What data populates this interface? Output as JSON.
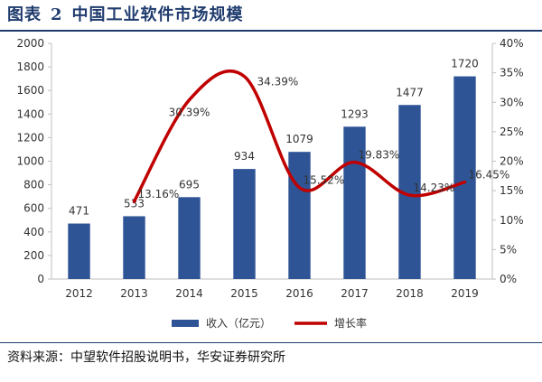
{
  "figure": {
    "label": "图表",
    "number": "2",
    "title": "中国工业软件市场规模"
  },
  "source": "资料来源：中望软件招股说明书，华安证券研究所",
  "colors": {
    "bar": "#2f5496",
    "line": "#c00000",
    "title": "#1f3b6e"
  },
  "chart_data": {
    "type": "bar",
    "categories": [
      "2012",
      "2013",
      "2014",
      "2015",
      "2016",
      "2017",
      "2018",
      "2019"
    ],
    "series": [
      {
        "name": "收入（亿元）",
        "type": "bar",
        "axis": "left",
        "values": [
          471,
          533,
          695,
          934,
          1079,
          1293,
          1477,
          1720
        ],
        "labels": [
          "471",
          "533",
          "695",
          "934",
          "1079",
          "1293",
          "1477",
          "1720"
        ]
      },
      {
        "name": "增长率",
        "type": "line",
        "axis": "right",
        "values": [
          null,
          13.16,
          30.39,
          34.39,
          15.52,
          19.83,
          14.23,
          16.45
        ],
        "labels": [
          "",
          "13.16%",
          "30.39%",
          "34.39%",
          "15.52%",
          "19.83%",
          "14.23%",
          "16.45%"
        ]
      }
    ],
    "y_left": {
      "min": 0,
      "max": 2000,
      "ticks": [
        "0",
        "200",
        "400",
        "600",
        "800",
        "1000",
        "1200",
        "1400",
        "1600",
        "1800",
        "2000"
      ]
    },
    "y_right": {
      "min": 0,
      "max": 40,
      "ticks": [
        "0%",
        "5%",
        "10%",
        "15%",
        "20%",
        "25%",
        "30%",
        "35%",
        "40%"
      ]
    },
    "grid": false,
    "legend": "bottom"
  }
}
